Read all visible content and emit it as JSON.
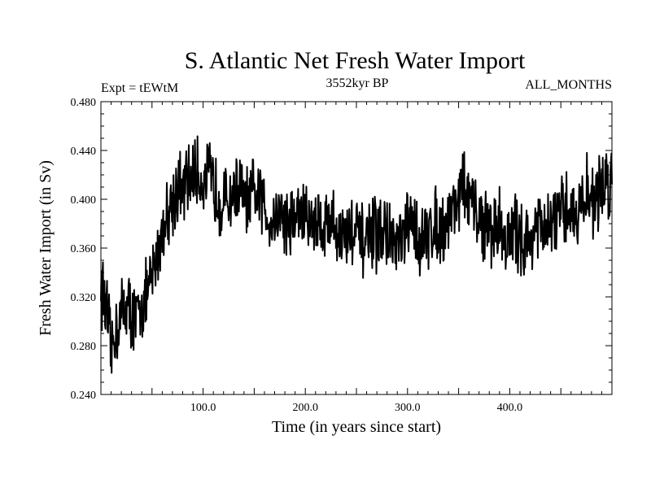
{
  "chart_data": {
    "type": "line",
    "title": "S. Atlantic Net Fresh Water Import",
    "subtitle_left": "Expt = tEWtM",
    "subtitle_center": "3552kyr BP",
    "subtitle_right": "ALL_MONTHS",
    "xlabel": "Time (in years since start)",
    "ylabel": "Fresh Water Import (in Sv)",
    "xlim": [
      0,
      500
    ],
    "ylim": [
      0.24,
      0.48
    ],
    "x_ticks": [
      100,
      200,
      300,
      400
    ],
    "x_tick_labels": [
      "100.0",
      "200.0",
      "300.0",
      "400.0"
    ],
    "y_ticks": [
      0.24,
      0.28,
      0.32,
      0.36,
      0.4,
      0.44,
      0.48
    ],
    "y_tick_labels": [
      "0.240",
      "0.280",
      "0.320",
      "0.360",
      "0.400",
      "0.440",
      "0.480"
    ],
    "series": [
      {
        "name": "Net Fresh Water Import",
        "x_step": 5,
        "x_start": 0,
        "values": [
          0.33,
          0.31,
          0.275,
          0.295,
          0.305,
          0.315,
          0.305,
          0.3,
          0.315,
          0.32,
          0.335,
          0.355,
          0.375,
          0.39,
          0.4,
          0.41,
          0.405,
          0.415,
          0.42,
          0.42,
          0.415,
          0.42,
          0.41,
          0.405,
          0.395,
          0.4,
          0.405,
          0.41,
          0.4,
          0.395,
          0.405,
          0.4,
          0.395,
          0.385,
          0.385,
          0.39,
          0.385,
          0.38,
          0.385,
          0.39,
          0.385,
          0.38,
          0.385,
          0.38,
          0.38,
          0.385,
          0.375,
          0.37,
          0.37,
          0.375,
          0.37,
          0.365,
          0.365,
          0.37,
          0.37,
          0.375,
          0.37,
          0.365,
          0.36,
          0.365,
          0.375,
          0.38,
          0.37,
          0.365,
          0.37,
          0.38,
          0.38,
          0.375,
          0.385,
          0.395,
          0.405,
          0.41,
          0.4,
          0.39,
          0.385,
          0.38,
          0.375,
          0.375,
          0.38,
          0.37,
          0.365,
          0.375,
          0.37,
          0.365,
          0.365,
          0.38,
          0.375,
          0.37,
          0.38,
          0.385,
          0.385,
          0.39,
          0.395,
          0.385,
          0.395,
          0.405,
          0.4,
          0.4,
          0.41,
          0.415
        ]
      }
    ]
  }
}
